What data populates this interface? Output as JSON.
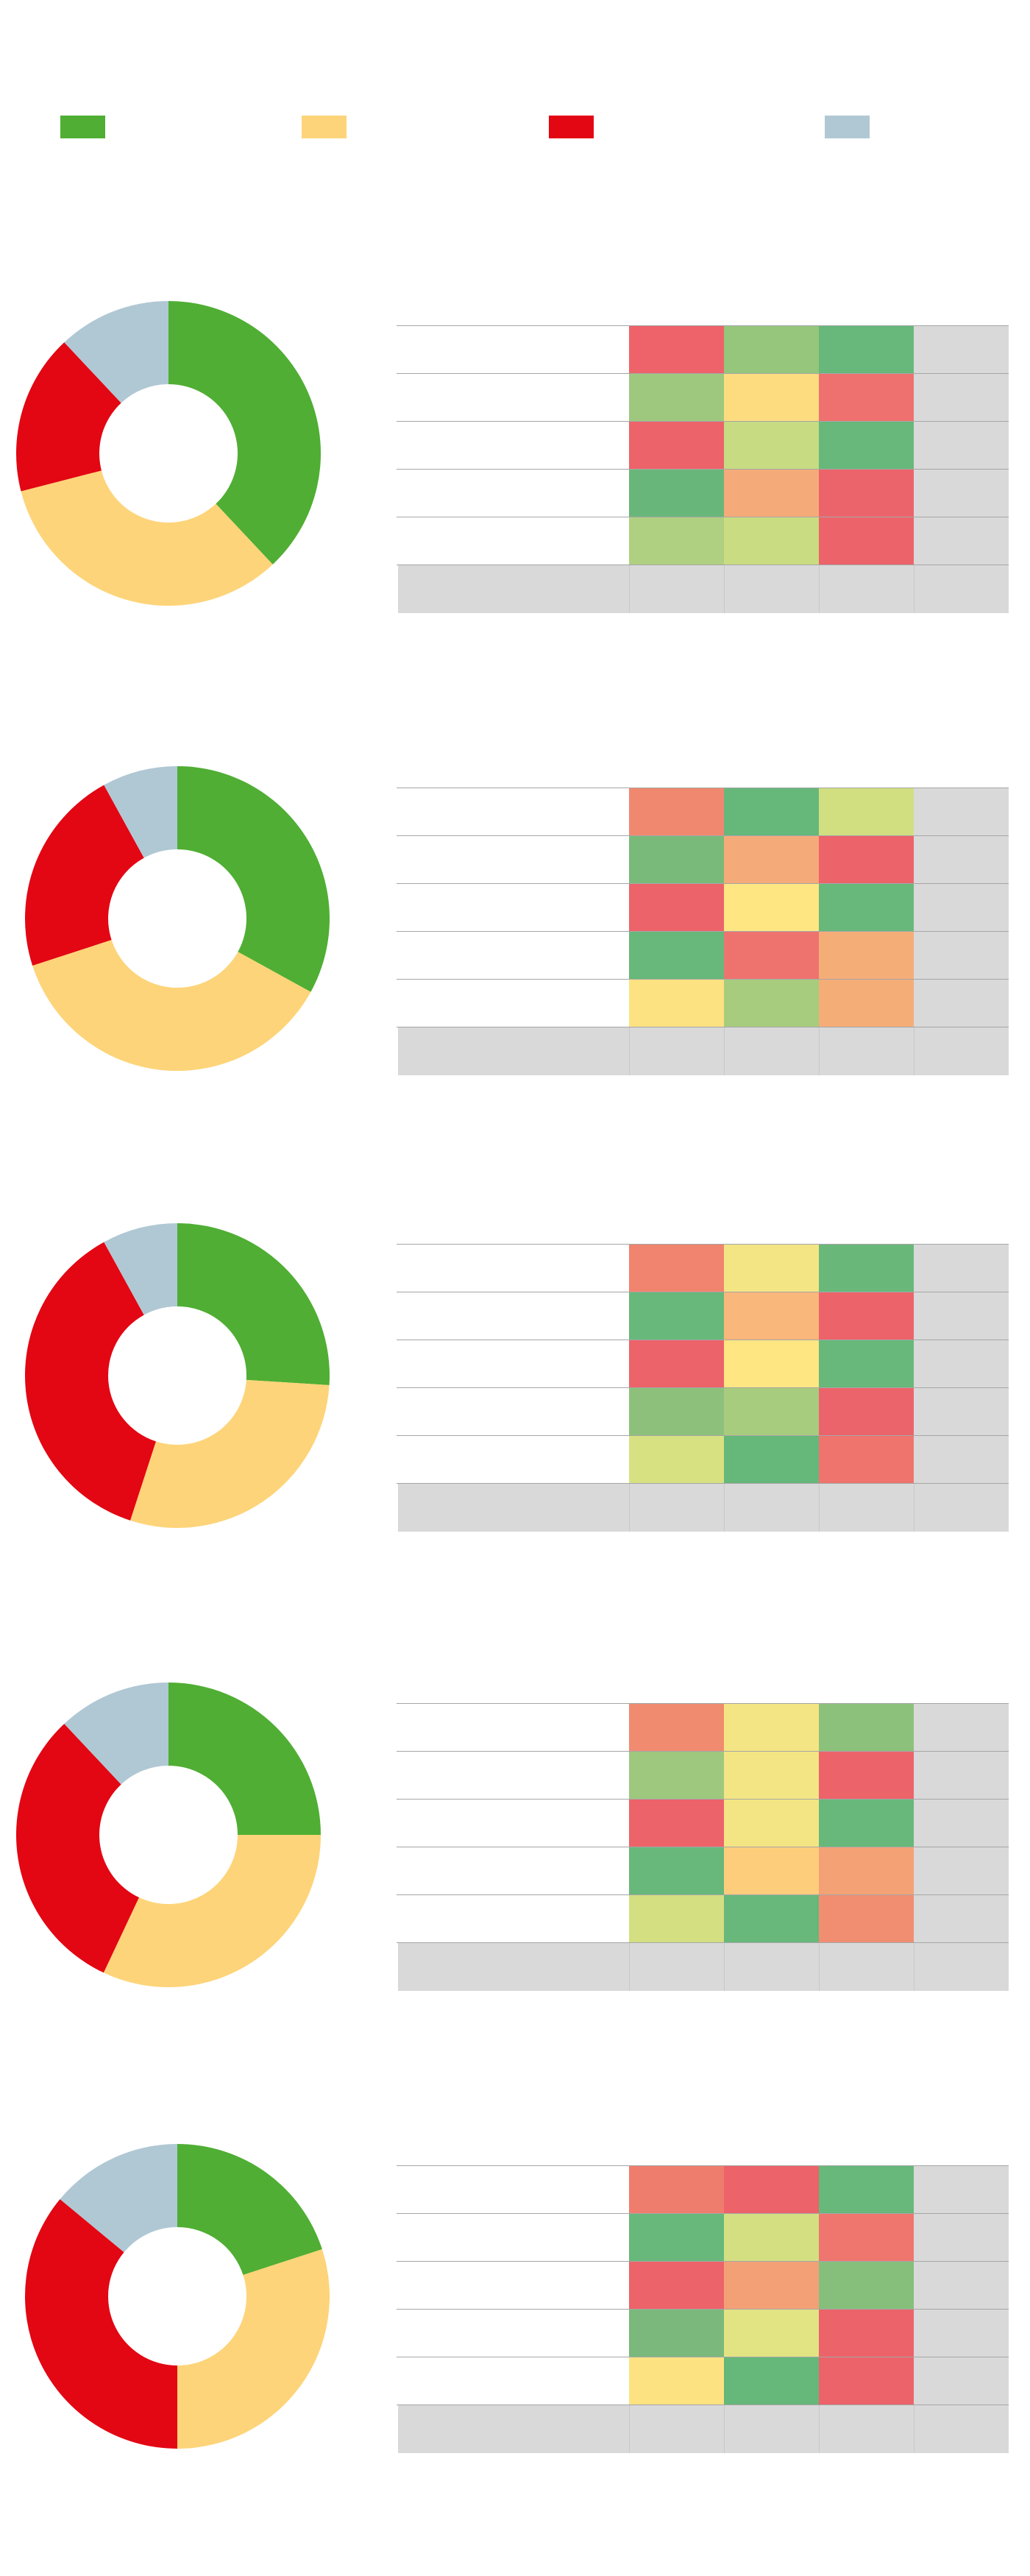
{
  "legend": [
    {
      "color": "#4fae33"
    },
    {
      "color": "#fdd479"
    },
    {
      "color": "#e30613"
    },
    {
      "color": "#b0c8d4"
    }
  ],
  "colors": {
    "green": "#4fae33",
    "yellow": "#fdd479",
    "red": "#e30613",
    "blue": "#b0c8d4",
    "total_gray": "#d9d9d9",
    "grid": "#a6a6a6"
  },
  "chart_data": [
    {
      "type": "pie",
      "slices": [
        {
          "color": "#4fae33",
          "value": 38
        },
        {
          "color": "#fdd479",
          "value": 33
        },
        {
          "color": "#e30613",
          "value": 17
        },
        {
          "color": "#b0c8d4",
          "value": 12
        }
      ],
      "heatmap": [
        [
          "#ed6369",
          "#96c67b",
          "#67b87a"
        ],
        [
          "#9ec87d",
          "#fddc80",
          "#ee716f"
        ],
        [
          "#ec636a",
          "#c6db82",
          "#67b87a"
        ],
        [
          "#69b67a",
          "#f4ab79",
          "#ec646b"
        ],
        [
          "#afd080",
          "#c9dc81",
          "#ec636a"
        ]
      ]
    },
    {
      "type": "pie",
      "slices": [
        {
          "color": "#4fae33",
          "value": 33
        },
        {
          "color": "#fdd479",
          "value": 37
        },
        {
          "color": "#e30613",
          "value": 22
        },
        {
          "color": "#b0c8d4",
          "value": 8
        }
      ],
      "heatmap": [
        [
          "#f0886f",
          "#66b77a",
          "#d1df81"
        ],
        [
          "#79ba7b",
          "#f5aa79",
          "#ec636a"
        ],
        [
          "#ec636a",
          "#fee683",
          "#67b87a"
        ],
        [
          "#67b87a",
          "#ee736f",
          "#f5ad78"
        ],
        [
          "#fde282",
          "#a7cc7e",
          "#f5ad78"
        ]
      ]
    },
    {
      "type": "pie",
      "slices": [
        {
          "color": "#4fae33",
          "value": 26
        },
        {
          "color": "#fdd479",
          "value": 29
        },
        {
          "color": "#e30613",
          "value": 37
        },
        {
          "color": "#b0c8d4",
          "value": 8
        }
      ],
      "heatmap": [
        [
          "#f0846e",
          "#f4e584",
          "#69b87a"
        ],
        [
          "#67b87a",
          "#f9b77b",
          "#ec636a"
        ],
        [
          "#ec636a",
          "#fee683",
          "#67b87a"
        ],
        [
          "#8dc17b",
          "#a8cc7e",
          "#ec646b"
        ],
        [
          "#d7e182",
          "#66b77a",
          "#ef746e"
        ]
      ]
    },
    {
      "type": "pie",
      "slices": [
        {
          "color": "#4fae33",
          "value": 25
        },
        {
          "color": "#fdd479",
          "value": 32
        },
        {
          "color": "#e30613",
          "value": 31
        },
        {
          "color": "#b0c8d4",
          "value": 12
        }
      ],
      "heatmap": [
        [
          "#f08b70",
          "#f3e584",
          "#8cc17b"
        ],
        [
          "#9ec87d",
          "#f3e584",
          "#ec636a"
        ],
        [
          "#ec636a",
          "#f3e584",
          "#67b87a"
        ],
        [
          "#67b87a",
          "#fecd7c",
          "#f4a176"
        ],
        [
          "#d3df81",
          "#67b87a",
          "#f18e71"
        ]
      ]
    },
    {
      "type": "pie",
      "slices": [
        {
          "color": "#4fae33",
          "value": 20
        },
        {
          "color": "#fdd479",
          "value": 30
        },
        {
          "color": "#e30613",
          "value": 36
        },
        {
          "color": "#b0c8d4",
          "value": 14
        }
      ],
      "heatmap": [
        [
          "#ef7d6e",
          "#ec636a",
          "#67b87a"
        ],
        [
          "#67b87a",
          "#d3df81",
          "#ee766f"
        ],
        [
          "#ec636a",
          "#f3a076",
          "#86bf7b"
        ],
        [
          "#7ab97b",
          "#e2e383",
          "#ec636a"
        ],
        [
          "#fde281",
          "#66b77a",
          "#ec636a"
        ]
      ]
    }
  ]
}
